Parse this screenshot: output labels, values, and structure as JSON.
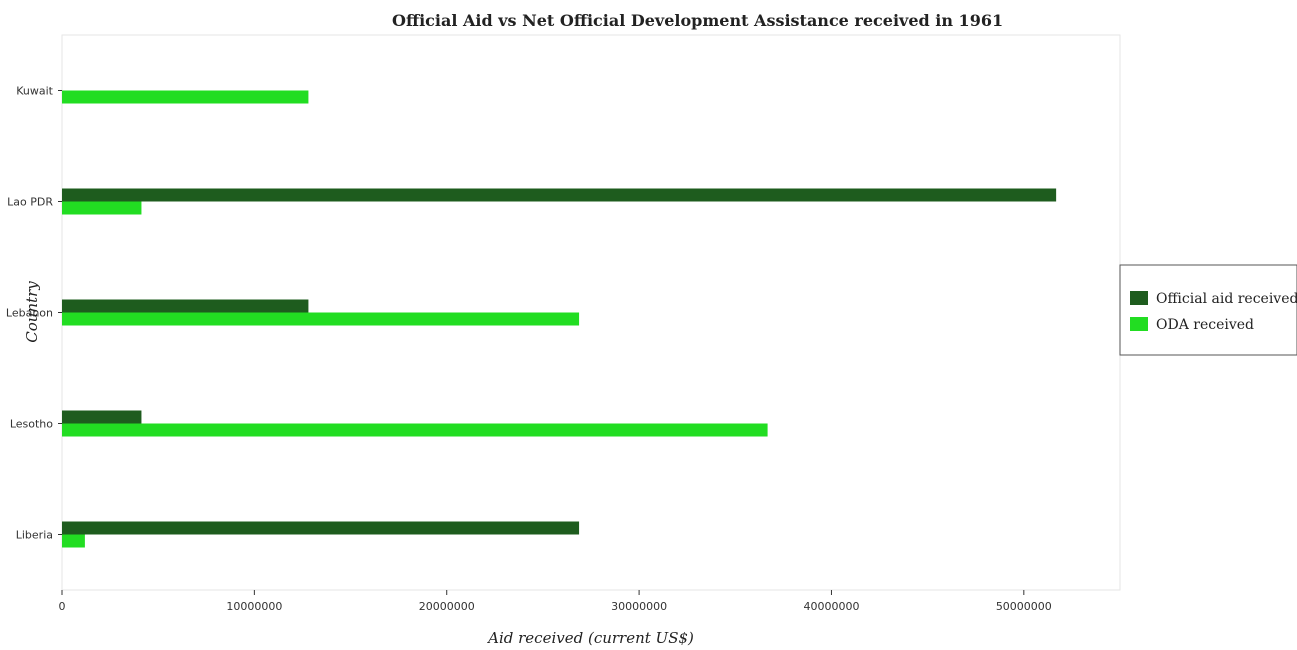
{
  "chart_data": {
    "type": "bar",
    "orientation": "horizontal",
    "title": "Official Aid vs Net Official Development Assistance received in 1961",
    "xlabel": "Aid received (current US$)",
    "ylabel": "Country",
    "categories": [
      "Kuwait",
      "Lao PDR",
      "Lebanon",
      "Lesotho",
      "Liberia"
    ],
    "series": [
      {
        "name": "Official aid received",
        "color": "#1e5c1e",
        "values": [
          0,
          51680000,
          12810000,
          4130000,
          26880000
        ]
      },
      {
        "name": "ODA received",
        "color": "#22dd22",
        "values": [
          12810000,
          4130000,
          26880000,
          36680000,
          1190000
        ]
      }
    ],
    "xlim": [
      0,
      55000000
    ],
    "xticks": [
      0,
      10000000,
      20000000,
      30000000,
      40000000,
      50000000
    ],
    "xtick_labels": [
      "0",
      "10000000",
      "20000000",
      "30000000",
      "40000000",
      "50000000"
    ],
    "grid": false,
    "legend_position": "right"
  }
}
